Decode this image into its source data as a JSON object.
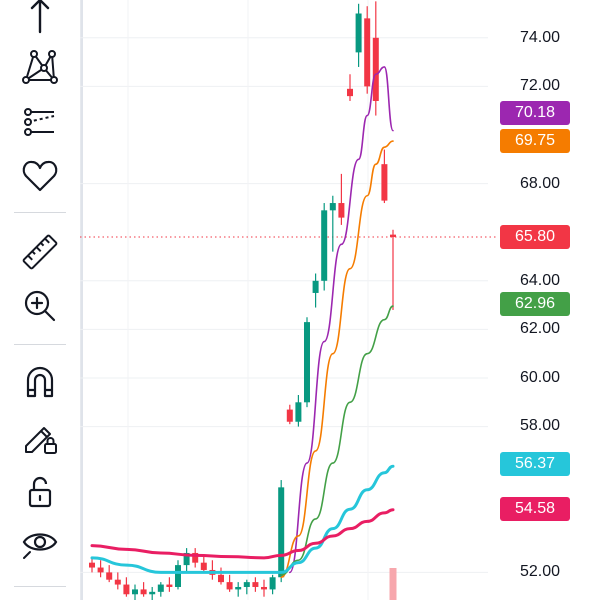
{
  "toolbar": {
    "tools": [
      {
        "name": "cursor-tool",
        "icon": "arrow-up-icon"
      },
      {
        "name": "pattern-tool",
        "icon": "xabcd-pattern-icon"
      },
      {
        "name": "prediction-tool",
        "icon": "forecast-lines-icon"
      },
      {
        "name": "watchlist-tool",
        "icon": "heart-icon"
      },
      {
        "name": "measure-tool",
        "icon": "ruler-icon"
      },
      {
        "name": "zoom-in-tool",
        "icon": "zoom-in-icon"
      },
      {
        "name": "magnet-tool",
        "icon": "magnet-icon"
      },
      {
        "name": "lock-drawing-tool",
        "icon": "pencil-lock-icon"
      },
      {
        "name": "lock-all-tool",
        "icon": "unlock-icon"
      },
      {
        "name": "visibility-tool",
        "icon": "eye-icon"
      }
    ]
  },
  "axis": {
    "labels": [
      "74.00",
      "72.00",
      "68.00",
      "64.00",
      "62.00",
      "60.00",
      "58.00",
      "52.00"
    ]
  },
  "price_tags": [
    {
      "label": "70.18",
      "value": 70.18,
      "color": "#9c27b0"
    },
    {
      "label": "69.75",
      "value": 69.75,
      "color": "#f57c00"
    },
    {
      "label": "65.80",
      "value": 65.8,
      "color": "#f23645"
    },
    {
      "label": "62.96",
      "value": 62.96,
      "color": "#43a047"
    },
    {
      "label": "56.37",
      "value": 56.37,
      "color": "#26c6da"
    },
    {
      "label": "54.58",
      "value": 54.58,
      "color": "#e91e63"
    }
  ],
  "chart_data": {
    "type": "candlestick",
    "current_price": 65.8,
    "ylim": [
      50.9,
      75.5
    ],
    "candles": [
      [
        52.4,
        52.6,
        52.0,
        52.2
      ],
      [
        52.2,
        52.5,
        51.8,
        52.0
      ],
      [
        52.0,
        52.3,
        51.6,
        51.7
      ],
      [
        51.7,
        52.0,
        51.3,
        51.5
      ],
      [
        51.5,
        51.8,
        51.0,
        51.1
      ],
      [
        51.1,
        51.5,
        50.8,
        51.3
      ],
      [
        51.3,
        51.6,
        51.0,
        51.1
      ],
      [
        51.1,
        51.4,
        50.8,
        51.2
      ],
      [
        51.2,
        51.6,
        51.0,
        51.5
      ],
      [
        51.5,
        51.8,
        51.2,
        51.4
      ],
      [
        51.4,
        52.5,
        51.3,
        52.3
      ],
      [
        52.3,
        53.0,
        52.0,
        52.8
      ],
      [
        52.8,
        53.0,
        52.2,
        52.4
      ],
      [
        52.4,
        52.7,
        52.0,
        52.1
      ],
      [
        52.1,
        52.5,
        51.7,
        51.9
      ],
      [
        51.9,
        52.2,
        51.5,
        51.6
      ],
      [
        51.6,
        51.9,
        51.2,
        51.3
      ],
      [
        51.3,
        51.6,
        51.0,
        51.4
      ],
      [
        51.4,
        51.7,
        51.1,
        51.6
      ],
      [
        51.6,
        51.8,
        51.2,
        51.4
      ],
      [
        51.4,
        51.7,
        51.0,
        51.3
      ],
      [
        51.3,
        51.9,
        51.1,
        51.8
      ],
      [
        51.8,
        55.8,
        51.6,
        55.5
      ],
      [
        58.7,
        58.9,
        58.1,
        58.2
      ],
      [
        58.2,
        59.3,
        58.0,
        59.0
      ],
      [
        59.0,
        62.5,
        58.8,
        62.3
      ],
      [
        63.5,
        64.3,
        62.9,
        64.0
      ],
      [
        64.0,
        67.2,
        63.6,
        66.9
      ],
      [
        66.9,
        67.5,
        65.2,
        67.2
      ],
      [
        67.2,
        68.4,
        66.3,
        66.6
      ],
      [
        71.9,
        72.5,
        71.4,
        71.6
      ],
      [
        73.4,
        75.4,
        72.8,
        75.0
      ],
      [
        74.8,
        75.3,
        71.7,
        72.0
      ],
      [
        74.0,
        75.5,
        70.8,
        71.4
      ],
      [
        68.8,
        69.4,
        67.2,
        67.3
      ],
      [
        65.9,
        66.1,
        62.8,
        65.8
      ]
    ],
    "moving_averages": [
      {
        "color": "#9c27b0",
        "x": [
          23,
          25,
          27,
          29,
          31,
          32,
          33,
          34,
          35
        ],
        "y": [
          52.0,
          56.5,
          61.5,
          65.5,
          69.0,
          70.8,
          72.5,
          72.8,
          70.18
        ]
      },
      {
        "color": "#f57c00",
        "x": [
          22,
          24,
          26,
          28,
          30,
          32,
          33,
          34,
          35
        ],
        "y": [
          51.8,
          53.5,
          57.0,
          61.0,
          64.5,
          67.5,
          68.8,
          69.5,
          69.75
        ]
      },
      {
        "color": "#43a047",
        "x": [
          22,
          24,
          26,
          28,
          30,
          32,
          34,
          35
        ],
        "y": [
          51.9,
          52.5,
          54.2,
          56.5,
          59.0,
          61.0,
          62.4,
          62.96
        ]
      },
      {
        "color": "#26c6da",
        "x": [
          0,
          4,
          8,
          12,
          16,
          20,
          22,
          24,
          26,
          28,
          30,
          32,
          34,
          35
        ],
        "y": [
          52.6,
          52.3,
          52.0,
          52.0,
          52.0,
          52.0,
          52.0,
          52.4,
          53.0,
          53.8,
          54.6,
          55.4,
          56.1,
          56.37
        ]
      },
      {
        "color": "#e91e63",
        "x": [
          0,
          4,
          8,
          12,
          16,
          20,
          22,
          24,
          26,
          28,
          30,
          32,
          34,
          35
        ],
        "y": [
          53.1,
          52.95,
          52.8,
          52.7,
          52.65,
          52.6,
          52.7,
          52.9,
          53.2,
          53.5,
          53.8,
          54.1,
          54.45,
          54.58
        ]
      }
    ],
    "volume": [
      {
        "index": 35,
        "value": 1.2,
        "color": "#f7a7ad"
      }
    ]
  }
}
